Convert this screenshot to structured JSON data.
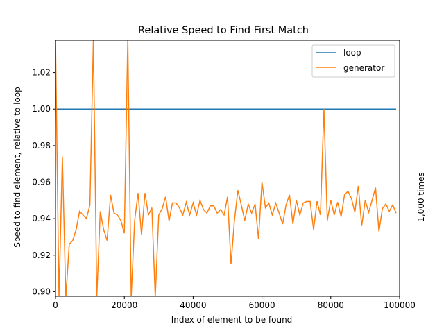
{
  "chart_data": {
    "type": "line",
    "title": "Relative Speed to Find First Match",
    "xlabel": "Index of element to be found",
    "ylabel": "Speed to find element, relative to loop",
    "right_label": "1,000 times",
    "xlim": [
      0,
      100000
    ],
    "ylim": [
      0.8975,
      1.0377
    ],
    "xticks": [
      0,
      20000,
      40000,
      60000,
      80000,
      100000
    ],
    "yticks": [
      0.9,
      0.92,
      0.94,
      0.96,
      0.98,
      1.0,
      1.02
    ],
    "ytick_labels": [
      "0.90",
      "0.92",
      "0.94",
      "0.96",
      "0.98",
      "1.00",
      "1.02"
    ],
    "grid": false,
    "legend_position": "upper right",
    "x": [
      0,
      1000,
      2000,
      3000,
      4000,
      5000,
      6000,
      7000,
      8000,
      9000,
      10000,
      11000,
      12000,
      13000,
      14000,
      15000,
      16000,
      17000,
      18000,
      19000,
      20000,
      21000,
      22000,
      23000,
      24000,
      25000,
      26000,
      27000,
      28000,
      29000,
      30000,
      31000,
      32000,
      33000,
      34000,
      35000,
      36000,
      37000,
      38000,
      39000,
      40000,
      41000,
      42000,
      43000,
      44000,
      45000,
      46000,
      47000,
      48000,
      49000,
      50000,
      51000,
      52000,
      53000,
      54000,
      55000,
      56000,
      57000,
      58000,
      59000,
      60000,
      61000,
      62000,
      63000,
      64000,
      65000,
      66000,
      67000,
      68000,
      69000,
      70000,
      71000,
      72000,
      73000,
      74000,
      75000,
      76000,
      77000,
      78000,
      79000,
      80000,
      81000,
      82000,
      83000,
      84000,
      85000,
      86000,
      87000,
      88000,
      89000,
      90000,
      91000,
      92000,
      93000,
      94000,
      95000,
      96000,
      97000,
      98000,
      99000
    ],
    "series": [
      {
        "name": "loop",
        "color": "#1f77b4",
        "values": [
          1,
          1,
          1,
          1,
          1,
          1,
          1,
          1,
          1,
          1,
          1,
          1,
          1,
          1,
          1,
          1,
          1,
          1,
          1,
          1,
          1,
          1,
          1,
          1,
          1,
          1,
          1,
          1,
          1,
          1,
          1,
          1,
          1,
          1,
          1,
          1,
          1,
          1,
          1,
          1,
          1,
          1,
          1,
          1,
          1,
          1,
          1,
          1,
          1,
          1,
          1,
          1,
          1,
          1,
          1,
          1,
          1,
          1,
          1,
          1,
          1,
          1,
          1,
          1,
          1,
          1,
          1,
          1,
          1,
          1,
          1,
          1,
          1,
          1,
          1,
          1,
          1,
          1,
          1,
          1,
          1,
          1,
          1,
          1,
          1,
          1,
          1,
          1,
          1,
          1,
          1,
          1,
          1,
          1,
          1,
          1,
          1,
          1,
          1,
          1
        ]
      },
      {
        "name": "generator",
        "color": "#ff7f0e",
        "values": [
          1.08,
          0.86,
          0.974,
          0.87,
          0.926,
          0.928,
          0.934,
          0.944,
          0.942,
          0.94,
          0.9475,
          1.08,
          0.87,
          0.944,
          0.934,
          0.928,
          0.953,
          0.943,
          0.942,
          0.939,
          0.932,
          1.08,
          0.87,
          0.939,
          0.954,
          0.931,
          0.954,
          0.942,
          0.946,
          0.87,
          0.942,
          0.9455,
          0.952,
          0.9387,
          0.9486,
          0.9486,
          0.946,
          0.942,
          0.949,
          0.942,
          0.9486,
          0.942,
          0.95,
          0.945,
          0.943,
          0.947,
          0.947,
          0.943,
          0.945,
          0.942,
          0.952,
          0.915,
          0.939,
          0.9555,
          0.9475,
          0.939,
          0.948,
          0.943,
          0.948,
          0.929,
          0.96,
          0.946,
          0.9485,
          0.942,
          0.9485,
          0.943,
          0.937,
          0.9475,
          0.953,
          0.937,
          0.95,
          0.942,
          0.9486,
          0.9494,
          0.9494,
          0.934,
          0.9495,
          0.942,
          1.0,
          0.939,
          0.95,
          0.942,
          0.949,
          0.941,
          0.953,
          0.955,
          0.951,
          0.9435,
          0.958,
          0.936,
          0.95,
          0.9435,
          0.95,
          0.957,
          0.933,
          0.9455,
          0.948,
          0.944,
          0.9475,
          0.943
        ]
      }
    ]
  }
}
